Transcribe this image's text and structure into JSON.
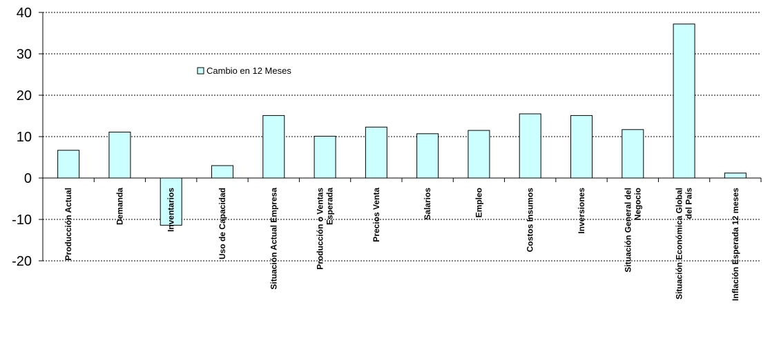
{
  "chart_data": {
    "type": "bar",
    "categories": [
      [
        "Producción Actual"
      ],
      [
        "Demanda"
      ],
      [
        "Inventarios"
      ],
      [
        "Uso de Capacidad"
      ],
      [
        "Situación Actual Empresa"
      ],
      [
        "Producción o Ventas",
        "Esperada"
      ],
      [
        "Precios Venta"
      ],
      [
        "Salarios"
      ],
      [
        "Empleo"
      ],
      [
        "Costos Insumos"
      ],
      [
        "Inversiones"
      ],
      [
        "Situación General del",
        "Negocio"
      ],
      [
        "Situación Económica Global",
        "del País"
      ],
      [
        "Inflación Esperada 12 meses"
      ]
    ],
    "series": [
      {
        "name": "Cambio en 12 Meses",
        "values": [
          6.7,
          11.1,
          -11.4,
          3.0,
          15.1,
          10.1,
          12.3,
          10.7,
          11.5,
          15.5,
          15.1,
          11.7,
          37.2,
          1.2
        ]
      }
    ],
    "ylim": [
      -20,
      40
    ],
    "yticks": [
      40,
      30,
      20,
      10,
      0,
      -10,
      -20
    ],
    "grid": true,
    "legend_position": "top-left",
    "colors": {
      "bar_fill": "#ccffff",
      "bar_stroke": "#000000",
      "grid": "#000000",
      "axis": "#000000"
    }
  }
}
